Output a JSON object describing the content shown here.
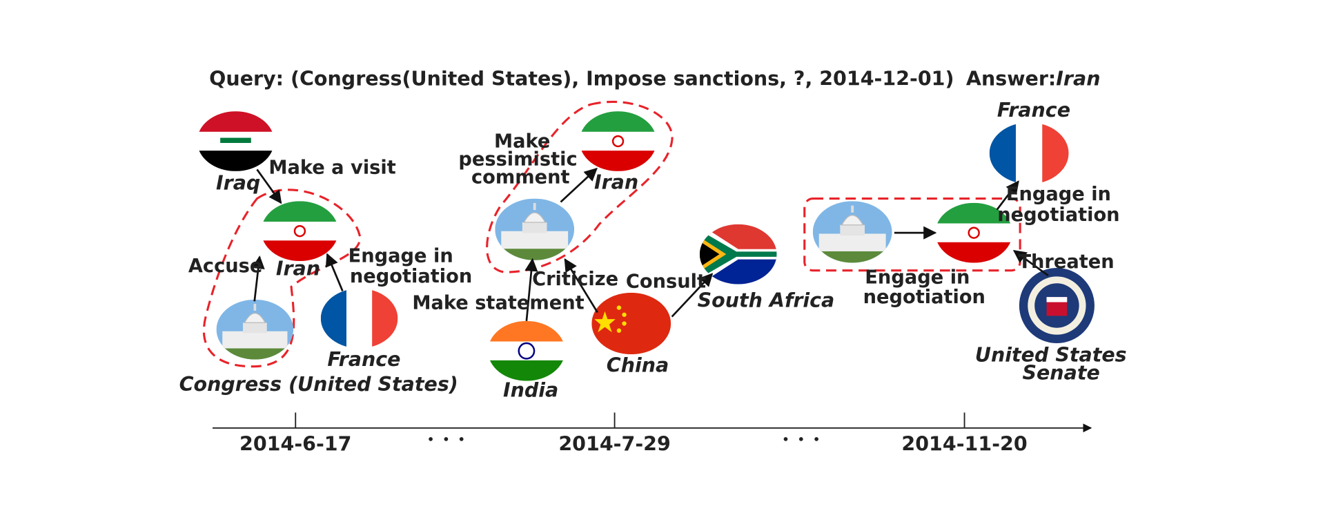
{
  "query": {
    "text": "Query: (Congress(United States), Impose sanctions, ?, 2014-12-01)",
    "answer_prefix": "Answer:",
    "answer": "Iran"
  },
  "timeline": {
    "dates": [
      "2014-6-17",
      "2014-7-29",
      "2014-11-20"
    ]
  },
  "snapshots": [
    {
      "nodes": [
        [
          "Iraq"
        ],
        [
          "Iran"
        ],
        [
          "Congress (United States)"
        ],
        [
          "France"
        ]
      ],
      "relations": [
        [
          "Make a visit"
        ],
        [
          "Accuse"
        ],
        [
          "Engage in",
          "negotiation"
        ]
      ]
    },
    {
      "nodes": [
        [
          "Iran"
        ],
        [
          "India"
        ],
        [
          "China"
        ],
        [
          "South Africa"
        ]
      ],
      "relations": [
        [
          "Make",
          "pessimistic",
          "comment"
        ],
        [
          "Make statement"
        ],
        [
          "Criticize"
        ],
        [
          "Consult"
        ]
      ]
    },
    {
      "nodes": [
        [
          "France"
        ],
        [
          "United States",
          "Senate"
        ]
      ],
      "relations": [
        [
          "Engage in",
          "negotiation"
        ],
        [
          "Engage in",
          "negotiation"
        ],
        [
          "Threaten"
        ]
      ]
    }
  ]
}
